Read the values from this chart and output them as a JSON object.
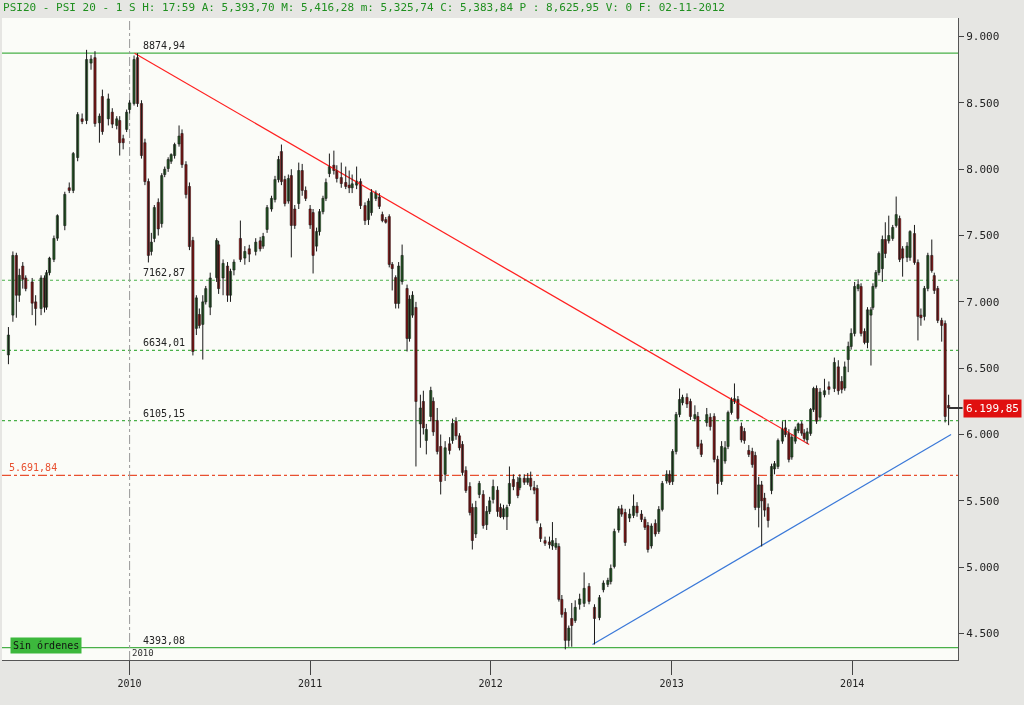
{
  "chart_data": {
    "type": "candlestick",
    "title": "PSI20 - PSI 20 - 1 S H: 17:59 A: 5,393,70 M: 5,416,28 m: 5,325,74 C: 5,383,84 P : 8,625,95 V: 0 F: 02-11-2012",
    "colors": [
      "#2f8f2f",
      "#2f8f2f",
      "#e01010",
      "#2f8f2f",
      "#e01010",
      "#e01010",
      "#e01010",
      "#e01010",
      "#2f8f2f",
      "#e01010",
      "#2f8f2f",
      "#2f8f2f",
      "#2f8f2f",
      "#2f8f2f",
      "#2f8f2f",
      "#e01010",
      "#2f8f2f",
      "#2f8f2f",
      "#e01010",
      "#2f8f2f",
      "#2f8f2f",
      "#e01010",
      "#2f8f2f",
      "#e01010",
      "#2f8f2f",
      "#e01010",
      "#2f8f2f",
      "#e01010",
      "#e01010",
      "#2f8f2f",
      "#2f8f2f",
      "#2f8f2f",
      "#e01010",
      "#e01010",
      "#e01010",
      "#e01010",
      "#2f8f2f",
      "#2f8f2f",
      "#e01010",
      "#2f8f2f",
      "#2f8f2f",
      "#2f8f2f",
      "#2f8f2f",
      "#2f8f2f",
      "#2f8f2f",
      "#e01010",
      "#e01010",
      "#e01010",
      "#e01010",
      "#2f8f2f",
      "#e01010",
      "#2f8f2f",
      "#2f8f2f",
      "#2f8f2f",
      "#2f8f2f",
      "#e01010",
      "#2f8f2f",
      "#e01010",
      "#2f8f2f",
      "#2f8f2f",
      "#e01010",
      "#2f8f2f",
      "#e01010",
      "#2f8f2f",
      "#e01010",
      "#2f8f2f",
      "#2f8f2f",
      "#2f8f2f",
      "#2f8f2f",
      "#2f8f2f",
      "#e01010",
      "#e01010",
      "#2f8f2f",
      "#e01010",
      "#e01010",
      "#2f8f2f",
      "#e01010",
      "#e01010",
      "#e01010",
      "#e01010",
      "#2f8f2f",
      "#2f8f2f",
      "#2f8f2f",
      "#2f8f2f",
      "#2f8f2f",
      "#e01010",
      "#e01010",
      "#e01010",
      "#e01010",
      "#e01010",
      "#2f8f2f",
      "#2f8f2f",
      "#e01010",
      "#e01010",
      "#2f8f2f",
      "#2f8f2f",
      "#2f8f2f",
      "#e01010",
      "#e01010",
      "#e01010",
      "#e01010",
      "#e01010",
      "#e01010",
      "#2f8f2f",
      "#2f8f2f",
      "#e01010",
      "#2f8f2f",
      "#2f8f2f",
      "#e01010",
      "#2f8f2f",
      "#e01010",
      "#2f8f2f",
      "#2f8f2f",
      "#e01010",
      "#e01010",
      "#e01010",
      "#2f8f2f",
      "#e01010",
      "#2f8f2f",
      "#e01010",
      "#e01010",
      "#e01010",
      "#e01010",
      "#e01010",
      "#e01010",
      "#2f8f2f",
      "#2f8f2f",
      "#e01010",
      "#2f8f2f",
      "#2f8f2f",
      "#2f8f2f",
      "#e01010",
      "#e01010",
      "#2f8f2f",
      "#2f8f2f",
      "#2f8f2f",
      "#e01010",
      "#e01010",
      "#2f8f2f",
      "#e01010",
      "#2f8f2f",
      "#e01010",
      "#e01010",
      "#e01010",
      "#e01010",
      "#e01010",
      "#e01010",
      "#2f8f2f",
      "#2f8f2f",
      "#e01010",
      "#e01010",
      "#e01010",
      "#2f8f2f",
      "#e01010",
      "#2f8f2f",
      "#2f8f2f",
      "#2f8f2f",
      "#e01010",
      "#e01010",
      "#2f8f2f",
      "#2f8f2f",
      "#2f8f2f",
      "#2f8f2f",
      "#2f8f2f",
      "#2f8f2f",
      "#e01010",
      "#e01010",
      "#2f8f2f",
      "#2f8f2f",
      "#e01010",
      "#e01010",
      "#e01010",
      "#e01010",
      "#2f8f2f",
      "#e01010",
      "#2f8f2f",
      "#2f8f2f",
      "#2f8f2f",
      "#e01010",
      "#2f8f2f",
      "#2f8f2f",
      "#2f8f2f",
      "#2f8f2f",
      "#e01010",
      "#e01010",
      "#2f8f2f",
      "#e01010",
      "#e01010",
      "#2f8f2f",
      "#e01010",
      "#e01010",
      "#e01010",
      "#2f8f2f",
      "#2f8f2f",
      "#2f8f2f",
      "#2f8f2f",
      "#2f8f2f",
      "#e01010",
      "#e01010",
      "#e01010",
      "#e01010",
      "#e01010",
      "#e01010",
      "#2f8f2f",
      "#e01010",
      "#e01010",
      "#e01010",
      "#2f8f2f",
      "#2f8f2f",
      "#2f8f2f",
      "#2f8f2f",
      "#e01010",
      "#e01010",
      "#2f8f2f",
      "#2f8f2f",
      "#2f8f2f",
      "#e01010",
      "#e01010",
      "#2f8f2f",
      "#2f8f2f",
      "#2f8f2f",
      "#e01010",
      "#2f8f2f",
      "#2f8f2f",
      "#e01010",
      "#2f8f2f",
      "#e01010",
      "#e01010",
      "#2f8f2f",
      "#2f8f2f",
      "#2f8f2f",
      "#2f8f2f",
      "#2f8f2f",
      "#e01010",
      "#e01010",
      "#2f8f2f",
      "#2f8f2f",
      "#2f8f2f",
      "#2f8f2f",
      "#2f8f2f",
      "#2f8f2f",
      "#e01010",
      "#2f8f2f",
      "#2f8f2f",
      "#2f8f2f",
      "#e01010",
      "#e01010",
      "#2f8f2f",
      "#2f8f2f",
      "#e01010",
      "#e01010",
      "#e01010",
      "#2f8f2f",
      "#2f8f2f",
      "#e01010",
      "#e01010",
      "#e01010",
      "#e01010",
      "#e01010",
      "#e01010"
    ],
    "x": [
      "2009-05-01",
      "2009-05-10",
      "2009-05-17",
      "2009-05-23",
      "2009-05-30",
      "2009-06-05",
      "2009-06-18",
      "2009-06-25",
      "2009-07-06",
      "2009-07-13",
      "2009-07-17",
      "2009-07-23",
      "2009-08-01",
      "2009-08-08",
      "2009-08-23",
      "2009-09-01",
      "2009-09-09",
      "2009-09-18",
      "2009-09-27",
      "2009-10-06",
      "2009-10-15",
      "2009-10-23",
      "2009-11-01",
      "2009-11-07",
      "2009-11-19",
      "2009-11-27",
      "2009-12-06",
      "2009-12-12",
      "2009-12-19",
      "2009-12-26",
      "2010-01-01",
      "2010-01-10",
      "2010-01-17",
      "2010-01-25",
      "2010-02-01",
      "2010-02-08",
      "2010-02-14",
      "2010-02-20",
      "2010-02-28",
      "2010-03-07",
      "2010-03-13",
      "2010-03-20",
      "2010-03-26",
      "2010-04-02",
      "2010-04-11",
      "2010-04-17",
      "2010-04-25",
      "2010-05-02",
      "2010-05-09",
      "2010-05-16",
      "2010-05-22",
      "2010-05-29",
      "2010-06-04",
      "2010-06-13",
      "2010-06-26",
      "2010-06-30",
      "2010-07-09",
      "2010-07-18",
      "2010-07-24",
      "2010-07-31",
      "2010-08-13",
      "2010-08-22",
      "2010-08-31",
      "2010-09-13",
      "2010-09-22",
      "2010-09-28",
      "2010-10-06",
      "2010-10-15",
      "2010-10-22",
      "2010-10-29",
      "2010-11-04",
      "2010-11-11",
      "2010-11-18",
      "2010-11-24",
      "2010-12-01",
      "2010-12-09",
      "2010-12-16",
      "2010-12-23",
      "2011-01-01",
      "2011-01-07",
      "2011-01-14",
      "2011-01-20",
      "2011-01-27",
      "2011-02-02",
      "2011-02-09",
      "2011-02-18",
      "2011-02-24",
      "2011-03-05",
      "2011-03-14",
      "2011-03-21",
      "2011-03-27",
      "2011-04-05",
      "2011-04-13",
      "2011-04-22",
      "2011-04-29",
      "2011-05-05",
      "2011-05-14",
      "2011-05-21",
      "2011-05-27",
      "2011-06-03",
      "2011-06-10",
      "2011-06-16",
      "2011-06-23",
      "2011-06-29",
      "2011-07-06",
      "2011-07-16",
      "2011-07-21",
      "2011-07-27",
      "2011-08-03",
      "2011-08-12",
      "2011-08-18",
      "2011-08-24",
      "2011-09-02",
      "2011-09-07",
      "2011-09-15",
      "2011-09-22",
      "2011-10-01",
      "2011-10-10",
      "2011-10-16",
      "2011-10-23",
      "2011-10-30",
      "2011-11-05",
      "2011-11-12",
      "2011-11-20",
      "2011-11-25",
      "2011-12-02",
      "2011-12-09",
      "2011-12-17",
      "2011-12-24",
      "2011-12-30",
      "2012-01-06",
      "2012-01-15",
      "2012-01-21",
      "2012-01-27",
      "2012-02-03",
      "2012-02-08",
      "2012-02-16",
      "2012-02-25",
      "2012-02-29",
      "2012-03-09",
      "2012-03-16",
      "2012-03-22",
      "2012-03-29",
      "2012-04-04",
      "2012-04-11",
      "2012-04-20",
      "2012-04-29",
      "2012-05-05",
      "2012-05-12",
      "2012-05-18",
      "2012-05-24",
      "2012-05-31",
      "2012-06-07",
      "2012-06-13",
      "2012-06-20",
      "2012-06-29",
      "2012-07-08",
      "2012-07-18",
      "2012-07-29",
      "2012-08-08",
      "2012-08-16",
      "2012-08-25",
      "2012-08-31",
      "2012-09-07",
      "2012-09-16",
      "2012-09-22",
      "2012-09-29",
      "2012-10-08",
      "2012-10-16",
      "2012-10-23",
      "2012-11-01",
      "2012-11-08",
      "2012-11-14",
      "2012-11-21",
      "2012-11-29",
      "2012-12-06",
      "2012-12-13",
      "2012-12-22",
      "2012-12-28",
      "2013-01-03",
      "2013-01-10",
      "2013-01-17",
      "2013-01-23",
      "2013-02-01",
      "2013-02-08",
      "2013-02-17",
      "2013-02-23",
      "2013-03-02",
      "2013-03-13",
      "2013-03-20",
      "2013-03-28",
      "2013-04-04",
      "2013-04-12",
      "2013-04-19",
      "2013-04-25",
      "2013-05-02",
      "2013-05-08",
      "2013-05-15",
      "2013-05-22",
      "2013-05-28",
      "2013-06-06",
      "2013-06-13",
      "2013-06-19",
      "2013-06-26",
      "2013-07-02",
      "2013-07-08",
      "2013-07-15",
      "2013-07-22",
      "2013-07-28",
      "2013-08-04",
      "2013-08-13",
      "2013-08-19",
      "2013-08-26",
      "2013-09-01",
      "2013-09-08",
      "2013-09-14",
      "2013-09-21",
      "2013-09-26",
      "2013-10-02",
      "2013-10-09",
      "2013-10-15",
      "2013-10-21",
      "2013-10-28",
      "2013-11-06",
      "2013-11-15",
      "2013-11-26",
      "2013-12-04",
      "2013-12-11",
      "2013-12-17",
      "2013-12-24",
      "2013-12-30",
      "2014-01-06",
      "2014-01-13",
      "2014-01-19",
      "2014-01-26",
      "2014-02-01",
      "2014-02-08",
      "2014-02-12",
      "2014-02-18",
      "2014-02-24",
      "2014-03-03",
      "2014-03-09",
      "2014-03-16",
      "2014-03-24",
      "2014-03-31",
      "2014-04-07",
      "2014-04-13",
      "2014-04-22",
      "2014-04-28",
      "2014-05-07",
      "2014-05-14",
      "2014-05-20",
      "2014-05-27",
      "2014-06-03",
      "2014-06-11",
      "2014-06-16",
      "2014-06-23",
      "2014-07-01",
      "2014-07-08",
      "2014-07-15"
    ],
    "ohlc": [
      [
        6600,
        6810,
        6530,
        6750
      ],
      [
        6900,
        7380,
        6850,
        7350
      ],
      [
        7350,
        7370,
        6880,
        7050
      ],
      [
        7050,
        7250,
        7000,
        7200
      ],
      [
        7270,
        7300,
        7100,
        7170
      ],
      [
        7180,
        7200,
        7080,
        7100
      ],
      [
        7150,
        7180,
        6900,
        6990
      ],
      [
        7000,
        7050,
        6822,
        6950
      ],
      [
        6950,
        7200,
        6900,
        7180
      ],
      [
        7180,
        7200,
        6920,
        6960
      ],
      [
        6960,
        7240,
        6940,
        7220
      ],
      [
        7220,
        7340,
        7200,
        7330
      ],
      [
        7320,
        7500,
        7300,
        7478
      ],
      [
        7480,
        7660,
        7460,
        7650
      ],
      [
        7575,
        7830,
        7540,
        7810
      ],
      [
        7860,
        7900,
        7820,
        7840
      ],
      [
        7840,
        8130,
        7820,
        8118
      ],
      [
        8088,
        8430,
        8060,
        8412
      ],
      [
        8380,
        8420,
        8340,
        8360
      ],
      [
        8367,
        8900,
        8340,
        8827
      ],
      [
        8800,
        8860,
        8750,
        8830
      ],
      [
        8841,
        8890,
        8320,
        8344
      ],
      [
        8350,
        8420,
        8200,
        8400
      ],
      [
        8548,
        8600,
        8260,
        8284
      ],
      [
        8380,
        8570,
        8330,
        8530
      ],
      [
        8430,
        8460,
        8310,
        8340
      ],
      [
        8330,
        8400,
        8300,
        8380
      ],
      [
        8367,
        8400,
        8103,
        8200
      ],
      [
        8230,
        8260,
        8150,
        8200
      ],
      [
        8300,
        8450,
        8280,
        8430
      ],
      [
        8450,
        8520,
        8420,
        8500
      ],
      [
        8495,
        8857,
        8480,
        8827
      ],
      [
        8841,
        8875,
        8470,
        8495
      ],
      [
        8495,
        8520,
        8080,
        8103
      ],
      [
        8200,
        8230,
        7880,
        7907
      ],
      [
        7907,
        7930,
        7297,
        7350
      ],
      [
        7380,
        7520,
        7350,
        7450
      ],
      [
        7478,
        7730,
        7450,
        7711
      ],
      [
        7750,
        7780,
        7500,
        7550
      ],
      [
        7590,
        7970,
        7560,
        7952
      ],
      [
        7960,
        8020,
        7940,
        8000
      ],
      [
        8005,
        8090,
        7980,
        8073
      ],
      [
        8060,
        8120,
        8040,
        8110
      ],
      [
        8103,
        8200,
        8080,
        8186
      ],
      [
        8190,
        8330,
        8170,
        8250
      ],
      [
        8269,
        8300,
        8010,
        8035
      ],
      [
        8035,
        8060,
        7780,
        7809
      ],
      [
        7870,
        7900,
        7390,
        7417
      ],
      [
        7463,
        7490,
        6596,
        6626
      ],
      [
        6800,
        7050,
        6750,
        7030
      ],
      [
        6905,
        6950,
        6800,
        6822
      ],
      [
        6830,
        7050,
        6565,
        7000
      ],
      [
        7000,
        7120,
        6980,
        7100
      ],
      [
        6960,
        7220,
        6900,
        7180
      ],
      [
        7183,
        7480,
        7150,
        7463
      ],
      [
        7430,
        7460,
        7060,
        7100
      ],
      [
        7180,
        7320,
        7050,
        7290
      ],
      [
        7270,
        7300,
        7000,
        7050
      ],
      [
        7050,
        7250,
        7000,
        7230
      ],
      [
        7240,
        7320,
        7200,
        7300
      ],
      [
        7478,
        7613,
        7300,
        7320
      ],
      [
        7330,
        7420,
        7280,
        7380
      ],
      [
        7400,
        7430,
        7300,
        7360
      ],
      [
        7380,
        7480,
        7350,
        7450
      ],
      [
        7460,
        7490,
        7380,
        7400
      ],
      [
        7420,
        7520,
        7400,
        7493
      ],
      [
        7546,
        7730,
        7520,
        7711
      ],
      [
        7700,
        7800,
        7680,
        7780
      ],
      [
        7772,
        7950,
        7750,
        7922
      ],
      [
        7922,
        8100,
        7900,
        8073
      ],
      [
        8133,
        8186,
        7880,
        7907
      ],
      [
        7922,
        7950,
        7720,
        7741
      ],
      [
        7760,
        7960,
        7740,
        7930
      ],
      [
        7952,
        8000,
        7335,
        7576
      ],
      [
        7700,
        7730,
        7550,
        7576
      ],
      [
        7741,
        8050,
        7700,
        7990
      ],
      [
        7990,
        8040,
        7800,
        7840
      ],
      [
        7840,
        7870,
        7760,
        7780
      ],
      [
        7700,
        7730,
        7550,
        7580
      ],
      [
        7673,
        7700,
        7214,
        7350
      ],
      [
        7420,
        7560,
        7380,
        7530
      ],
      [
        7530,
        7700,
        7500,
        7680
      ],
      [
        7680,
        7800,
        7660,
        7780
      ],
      [
        7780,
        7930,
        7760,
        7900
      ],
      [
        7967,
        8118,
        7940,
        8020
      ],
      [
        8030,
        8140,
        7960,
        7990
      ],
      [
        7990,
        8030,
        7900,
        7930
      ],
      [
        7937,
        8050,
        7860,
        7892
      ],
      [
        7900,
        8020,
        7850,
        7870
      ],
      [
        7880,
        7990,
        7820,
        7860
      ],
      [
        7860,
        7960,
        7820,
        7890
      ],
      [
        7880,
        8020,
        7850,
        7910
      ],
      [
        7907,
        7930,
        7700,
        7726
      ],
      [
        7726,
        7750,
        7580,
        7613
      ],
      [
        7620,
        7780,
        7580,
        7760
      ],
      [
        7673,
        7850,
        7650,
        7824
      ],
      [
        7780,
        7840,
        7760,
        7820
      ],
      [
        7790,
        7820,
        7700,
        7720
      ],
      [
        7658,
        7680,
        7600,
        7613
      ],
      [
        7620,
        7640,
        7590,
        7600
      ],
      [
        7643,
        7660,
        7260,
        7282
      ],
      [
        7282,
        7300,
        7086,
        7251
      ],
      [
        7183,
        7200,
        6950,
        6988
      ],
      [
        6988,
        7300,
        6950,
        7270
      ],
      [
        7153,
        7432,
        7130,
        7350
      ],
      [
        7101,
        7130,
        6626,
        6724
      ],
      [
        6724,
        7050,
        6700,
        7020
      ],
      [
        6900,
        7080,
        6880,
        7050
      ],
      [
        6958,
        7000,
        5759,
        6249
      ],
      [
        6080,
        6300,
        5900,
        6200
      ],
      [
        6249,
        6330,
        6000,
        6050
      ],
      [
        5955,
        6080,
        5850,
        6038
      ],
      [
        6136,
        6360,
        6100,
        6332
      ],
      [
        6250,
        6280,
        5990,
        6020
      ],
      [
        6106,
        6200,
        5850,
        5872
      ],
      [
        5910,
        6000,
        5548,
        5646
      ],
      [
        5700,
        5950,
        5650,
        5900
      ],
      [
        5930,
        5980,
        5850,
        5880
      ],
      [
        5955,
        6120,
        5930,
        6083
      ],
      [
        6100,
        6130,
        5960,
        5990
      ],
      [
        5990,
        6010,
        5880,
        5900
      ],
      [
        5925,
        5950,
        5690,
        5714
      ],
      [
        5729,
        5760,
        5560,
        5578
      ],
      [
        5608,
        5640,
        5390,
        5412
      ],
      [
        5450,
        5480,
        5133,
        5201
      ],
      [
        5250,
        5500,
        5220,
        5450
      ],
      [
        5548,
        5650,
        5520,
        5631
      ],
      [
        5548,
        5580,
        5290,
        5314
      ],
      [
        5320,
        5460,
        5280,
        5420
      ],
      [
        5420,
        5530,
        5400,
        5500
      ],
      [
        5510,
        5660,
        5480,
        5608
      ],
      [
        5580,
        5610,
        5380,
        5420
      ],
      [
        5450,
        5480,
        5370,
        5380
      ],
      [
        5380,
        5470,
        5360,
        5440
      ],
      [
        5380,
        5470,
        5280,
        5450
      ],
      [
        5480,
        5759,
        5460,
        5631
      ],
      [
        5661,
        5700,
        5580,
        5608
      ],
      [
        5640,
        5680,
        5520,
        5540
      ],
      [
        5600,
        5700,
        5580,
        5670
      ],
      [
        5670,
        5700,
        5620,
        5640
      ],
      [
        5640,
        5710,
        5620,
        5670
      ],
      [
        5670,
        5720,
        5580,
        5610
      ],
      [
        5600,
        5650,
        5550,
        5580
      ],
      [
        5593,
        5620,
        5330,
        5352
      ],
      [
        5299,
        5330,
        5190,
        5216
      ],
      [
        5200,
        5230,
        5160,
        5180
      ],
      [
        5190,
        5230,
        5140,
        5170
      ],
      [
        5160,
        5340,
        5130,
        5200
      ],
      [
        5150,
        5220,
        5130,
        5180
      ],
      [
        5156,
        5180,
        4740,
        4757
      ],
      [
        4757,
        4790,
        4620,
        4644
      ],
      [
        4659,
        4690,
        4380,
        4448
      ],
      [
        4448,
        4560,
        4400,
        4540
      ],
      [
        4613,
        4730,
        4400,
        4560
      ],
      [
        4598,
        4750,
        4580,
        4697
      ],
      [
        4720,
        4800,
        4680,
        4760
      ],
      [
        4727,
        4960,
        4700,
        4840
      ],
      [
        4855,
        4880,
        4720,
        4742
      ],
      [
        4697,
        4720,
        4417,
        4613
      ],
      [
        4620,
        4790,
        4600,
        4770
      ],
      [
        4830,
        4900,
        4810,
        4880
      ],
      [
        4870,
        4920,
        4850,
        4900
      ],
      [
        4892,
        5020,
        4870,
        4990
      ],
      [
        5005,
        5290,
        4990,
        5269
      ],
      [
        5280,
        5460,
        5260,
        5440
      ],
      [
        5440,
        5470,
        5380,
        5400
      ],
      [
        5412,
        5440,
        5160,
        5186
      ],
      [
        5370,
        5440,
        5340,
        5400
      ],
      [
        5390,
        5548,
        5370,
        5460
      ],
      [
        5460,
        5490,
        5380,
        5410
      ],
      [
        5400,
        5430,
        5340,
        5360
      ],
      [
        5360,
        5380,
        5280,
        5300
      ],
      [
        5314,
        5340,
        5110,
        5133
      ],
      [
        5160,
        5330,
        5140,
        5310
      ],
      [
        5330,
        5360,
        5230,
        5250
      ],
      [
        5269,
        5460,
        5250,
        5435
      ],
      [
        5435,
        5650,
        5420,
        5631
      ],
      [
        5650,
        5730,
        5630,
        5700
      ],
      [
        5700,
        5730,
        5620,
        5640
      ],
      [
        5646,
        5890,
        5620,
        5872
      ],
      [
        5872,
        6170,
        5850,
        6151
      ],
      [
        6151,
        6347,
        6130,
        6264
      ],
      [
        6240,
        6300,
        6220,
        6280
      ],
      [
        6280,
        6310,
        6200,
        6230
      ],
      [
        6249,
        6270,
        6110,
        6136
      ],
      [
        6120,
        6220,
        6100,
        6150
      ],
      [
        6136,
        6170,
        5890,
        5910
      ],
      [
        5930,
        5960,
        5830,
        5850
      ],
      [
        6090,
        6200,
        6060,
        6150
      ],
      [
        6130,
        6160,
        6030,
        6060
      ],
      [
        6136,
        6160,
        5790,
        5812
      ],
      [
        5812,
        5840,
        5548,
        5631
      ],
      [
        5646,
        5950,
        5620,
        5910
      ],
      [
        5800,
        5950,
        5780,
        5900
      ],
      [
        5910,
        6180,
        5890,
        6166
      ],
      [
        6166,
        6280,
        6150,
        6264
      ],
      [
        6250,
        6385,
        6230,
        6270
      ],
      [
        6264,
        6290,
        6100,
        6121
      ],
      [
        6060,
        6090,
        5940,
        5960
      ],
      [
        6023,
        6050,
        5930,
        5955
      ],
      [
        5880,
        5920,
        5830,
        5850
      ],
      [
        5872,
        5900,
        5750,
        5774
      ],
      [
        5842,
        5870,
        5430,
        5450
      ],
      [
        5450,
        5680,
        5300,
        5620
      ],
      [
        5620,
        5650,
        5156,
        5500
      ],
      [
        5520,
        5560,
        5380,
        5430
      ],
      [
        5450,
        5480,
        5299,
        5352
      ],
      [
        5578,
        5780,
        5550,
        5759
      ],
      [
        5740,
        5800,
        5700,
        5780
      ],
      [
        5759,
        5970,
        5740,
        5955
      ],
      [
        5950,
        6100,
        5930,
        6040
      ],
      [
        6050,
        6110,
        5980,
        6000
      ],
      [
        6008,
        6040,
        5790,
        5812
      ],
      [
        5830,
        6000,
        5810,
        5980
      ],
      [
        5950,
        6060,
        5930,
        6040
      ],
      [
        6030,
        6090,
        6010,
        6080
      ],
      [
        6080,
        6100,
        5990,
        6010
      ],
      [
        6010,
        6040,
        5950,
        5970
      ],
      [
        5960,
        6050,
        5930,
        6020
      ],
      [
        6008,
        6200,
        5990,
        6189
      ],
      [
        6189,
        6360,
        6170,
        6347
      ],
      [
        6347,
        6370,
        6080,
        6100
      ],
      [
        6130,
        6350,
        6110,
        6320
      ],
      [
        6300,
        6420,
        6280,
        6330
      ],
      [
        6360,
        6400,
        6300,
        6340
      ],
      [
        6347,
        6580,
        6320,
        6543
      ],
      [
        6510,
        6560,
        6300,
        6330
      ],
      [
        6400,
        6440,
        6310,
        6340
      ],
      [
        6350,
        6550,
        6330,
        6510
      ],
      [
        6565,
        6700,
        6470,
        6664
      ],
      [
        6664,
        6800,
        6640,
        6762
      ],
      [
        6762,
        7150,
        6740,
        7116
      ],
      [
        7100,
        7170,
        7080,
        7130
      ],
      [
        7116,
        7140,
        6740,
        6762
      ],
      [
        6777,
        6800,
        6680,
        6694
      ],
      [
        6694,
        6960,
        6650,
        6940
      ],
      [
        6900,
        6960,
        6520,
        6940
      ],
      [
        6958,
        7140,
        6940,
        7116
      ],
      [
        7116,
        7240,
        7100,
        7221
      ],
      [
        7221,
        7380,
        7200,
        7365
      ],
      [
        7250,
        7500,
        7150,
        7470
      ],
      [
        7470,
        7600,
        7330,
        7365
      ],
      [
        7460,
        7650,
        7440,
        7500
      ],
      [
        7478,
        7580,
        7460,
        7561
      ],
      [
        7576,
        7794,
        7560,
        7658
      ],
      [
        7628,
        7650,
        7300,
        7320
      ],
      [
        7400,
        7420,
        7190,
        7330
      ],
      [
        7335,
        7450,
        7300,
        7420
      ],
      [
        7335,
        7540,
        7310,
        7530
      ],
      [
        7515,
        7580,
        7280,
        7297
      ],
      [
        7297,
        7320,
        6709,
        6890
      ],
      [
        6900,
        6950,
        6820,
        6880
      ],
      [
        6890,
        7120,
        6860,
        7101
      ],
      [
        7101,
        7370,
        7080,
        7350
      ],
      [
        7350,
        7470,
        7220,
        7236
      ],
      [
        7198,
        7220,
        7060,
        7086
      ],
      [
        7101,
        7120,
        6840,
        6860
      ],
      [
        6860,
        6880,
        6700,
        6822
      ],
      [
        6837,
        6860,
        6091,
        6136
      ],
      [
        6219,
        6300,
        6070,
        6199.85
      ]
    ],
    "series": [
      {
        "type": "line",
        "color": "#ff2020",
        "x": [
          "2010-01-11",
          "2013-10-06"
        ],
        "values": [
          8875,
          5925
        ]
      },
      {
        "type": "line",
        "color": "#3a78d8",
        "x": [
          "2012-07-25",
          "2014-07-20"
        ],
        "values": [
          4417,
          6000
        ]
      }
    ],
    "xlim": [
      "2009-04-18",
      "2014-08-03"
    ],
    "xticks": [
      {
        "value": "2010-01-01",
        "label": "2010"
      },
      {
        "value": "2011-01-01",
        "label": "2011"
      },
      {
        "value": "2012-01-01",
        "label": "2012"
      },
      {
        "value": "2013-01-01",
        "label": "2013"
      },
      {
        "value": "2014-01-01",
        "label": "2014"
      }
    ],
    "ylim": [
      4300,
      9140
    ],
    "yticks": [
      {
        "value": 4500,
        "label": "4.500"
      },
      {
        "value": 5000,
        "label": "5.000"
      },
      {
        "value": 5500,
        "label": "5.500"
      },
      {
        "value": 6000,
        "label": "6.000"
      },
      {
        "value": 6500,
        "label": "6.500"
      },
      {
        "value": 7000,
        "label": "7.000"
      },
      {
        "value": 7500,
        "label": "7.500"
      },
      {
        "value": 8000,
        "label": "8.000"
      },
      {
        "value": 8500,
        "label": "8.500"
      },
      {
        "value": 9000,
        "label": "9.000"
      }
    ],
    "ref_lines": [
      {
        "axis": "y",
        "value": 8874.94,
        "label": "8874,94",
        "color": "#49b049",
        "line_style": "solid"
      },
      {
        "axis": "y",
        "value": 7162.87,
        "label": "7162,87",
        "color": "#49b049",
        "line_style": "dotted"
      },
      {
        "axis": "y",
        "value": 6634.01,
        "label": "6634,01",
        "color": "#49b049",
        "line_style": "dotted"
      },
      {
        "axis": "y",
        "value": 6105.15,
        "label": "6105,15",
        "color": "#49b049",
        "line_style": "dotted"
      },
      {
        "axis": "y",
        "value": 4393.08,
        "label": "4393,08",
        "color": "#49b049",
        "line_style": "solid"
      },
      {
        "axis": "y",
        "value": 5691.84,
        "label": "5.691,84",
        "color": "#e85030",
        "line_style": "dashed"
      },
      {
        "axis": "x",
        "value": "2010-01-01",
        "label": "2010",
        "color": "#999999",
        "line_style": "dashed"
      }
    ],
    "annotations": [
      "Sin órdenes",
      {
        "text": "6.199,85",
        "x": "2014-07-15",
        "y": 6199.85
      }
    ]
  }
}
